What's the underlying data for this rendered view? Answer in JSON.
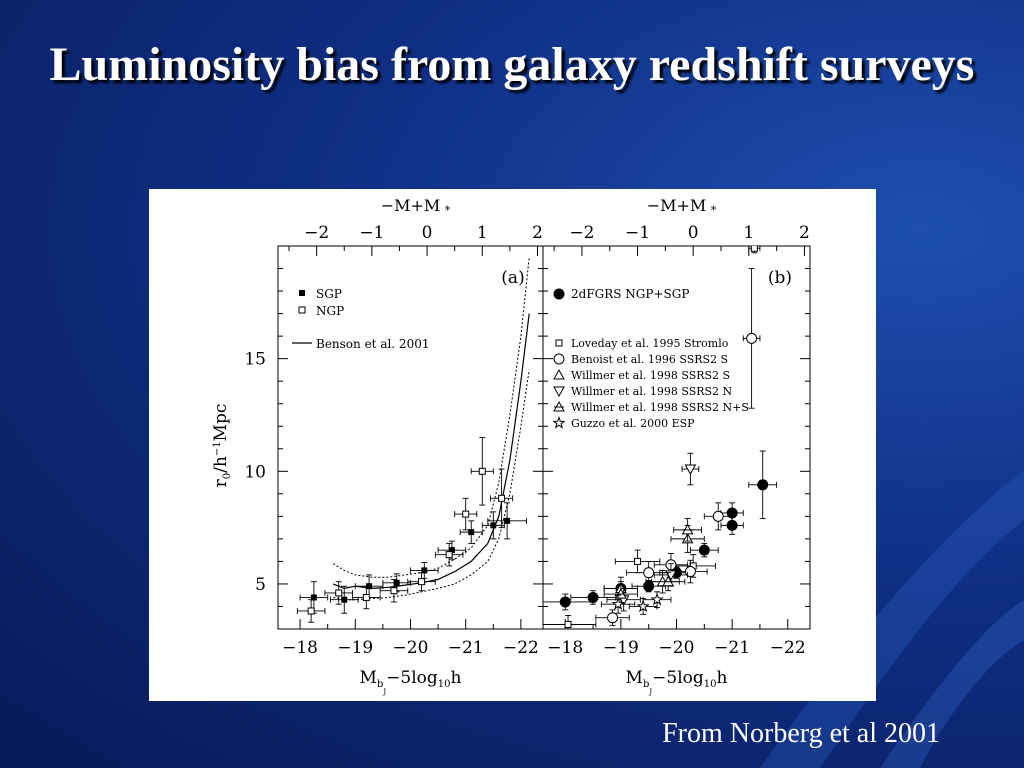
{
  "slide": {
    "title": "Luminosity bias from galaxy redshift surveys",
    "credit": "From Norberg et al 2001",
    "background_color": "#0f2f85",
    "title_color": "#ffffff"
  },
  "chart_data": [
    {
      "type": "scatter",
      "panel_label": "(a)",
      "xlabel": "M",
      "xlabel_sub": "b",
      "xlabel_subsub": "J",
      "xlabel_rest": "−5log",
      "xlabel_sub2": "10",
      "xlabel_end": "h",
      "ylabel": "r",
      "ylabel_sub": "0",
      "ylabel_rest": "/h",
      "ylabel_sup": "−1",
      "ylabel_end": "Mpc",
      "top_axis_label": "−M+M",
      "top_axis_sub": "*",
      "xlim": [
        -17.6,
        -22.4
      ],
      "ylim": [
        3,
        20
      ],
      "x_ticks": [
        "−18",
        "−19",
        "−20",
        "−21",
        "−22"
      ],
      "x_tick_values": [
        -18,
        -19,
        -20,
        -21,
        -22
      ],
      "y_ticks": [
        "5",
        "10",
        "15"
      ],
      "y_tick_values": [
        5,
        10,
        15
      ],
      "top_ticks": [
        "−2",
        "−1",
        "0",
        "1",
        "2"
      ],
      "top_tick_values": [
        -2,
        -1,
        0,
        1,
        2
      ],
      "top_offset": -20.3,
      "legend": [
        {
          "label": "SGP",
          "marker": "filled-square"
        },
        {
          "label": "NGP",
          "marker": "open-square"
        },
        {
          "label": "Benson et al. 2001",
          "marker": "line"
        }
      ],
      "series": [
        {
          "name": "SGP",
          "marker": "filled-square",
          "points": [
            {
              "x": -18.25,
              "y": 4.4,
              "xerr": 0.25,
              "yerr": 0.7
            },
            {
              "x": -18.8,
              "y": 4.3,
              "xerr": 0.25,
              "yerr": 0.6
            },
            {
              "x": -19.25,
              "y": 4.9,
              "xerr": 0.25,
              "yerr": 0.5
            },
            {
              "x": -19.75,
              "y": 5.05,
              "xerr": 0.25,
              "yerr": 0.4
            },
            {
              "x": -20.25,
              "y": 5.6,
              "xerr": 0.25,
              "yerr": 0.35
            },
            {
              "x": -20.75,
              "y": 6.5,
              "xerr": 0.25,
              "yerr": 0.4
            },
            {
              "x": -21.1,
              "y": 7.3,
              "xerr": 0.2,
              "yerr": 0.5
            },
            {
              "x": -21.5,
              "y": 7.6,
              "xerr": 0.2,
              "yerr": 0.6
            },
            {
              "x": -21.75,
              "y": 7.8,
              "xerr": 0.35,
              "yerr": 0.8
            }
          ]
        },
        {
          "name": "NGP",
          "marker": "open-square",
          "points": [
            {
              "x": -18.2,
              "y": 3.8,
              "xerr": 0.25,
              "yerr": 0.5
            },
            {
              "x": -18.7,
              "y": 4.6,
              "xerr": 0.25,
              "yerr": 0.5
            },
            {
              "x": -19.2,
              "y": 4.4,
              "xerr": 0.25,
              "yerr": 0.5
            },
            {
              "x": -19.7,
              "y": 4.7,
              "xerr": 0.25,
              "yerr": 0.5
            },
            {
              "x": -20.2,
              "y": 5.1,
              "xerr": 0.25,
              "yerr": 0.4
            },
            {
              "x": -20.7,
              "y": 6.3,
              "xerr": 0.25,
              "yerr": 0.5
            },
            {
              "x": -21.0,
              "y": 8.1,
              "xerr": 0.2,
              "yerr": 0.7
            },
            {
              "x": -21.3,
              "y": 10.0,
              "xerr": 0.2,
              "yerr": 1.5
            },
            {
              "x": -21.65,
              "y": 8.8,
              "xerr": 0.2,
              "yerr": 1.3
            }
          ]
        }
      ],
      "model": {
        "name": "Benson et al. 2001",
        "x": [
          -18.6,
          -18.8,
          -19.0,
          -19.3,
          -19.6,
          -19.9,
          -20.2,
          -20.5,
          -20.8,
          -21.1,
          -21.4,
          -21.6,
          -21.8,
          -22.0,
          -22.15
        ],
        "y": [
          5.0,
          4.8,
          4.9,
          4.8,
          4.85,
          4.95,
          5.05,
          5.2,
          5.55,
          6.0,
          6.8,
          8.0,
          10.5,
          14.0,
          17.0
        ],
        "upper": [
          5.9,
          5.6,
          5.4,
          5.3,
          5.3,
          5.4,
          5.5,
          5.7,
          6.1,
          6.6,
          7.6,
          9.5,
          12.5,
          16.0,
          19.5
        ],
        "lower": [
          4.4,
          4.3,
          4.3,
          4.35,
          4.4,
          4.5,
          4.65,
          4.8,
          5.0,
          5.4,
          6.0,
          7.0,
          9.0,
          12.0,
          14.5
        ]
      }
    },
    {
      "type": "scatter",
      "panel_label": "(b)",
      "xlabel": "M",
      "xlabel_sub": "b",
      "xlabel_subsub": "J",
      "xlabel_rest": "−5log",
      "xlabel_sub2": "10",
      "xlabel_end": "h",
      "top_axis_label": "−M+M",
      "top_axis_sub": "*",
      "xlim": [
        -17.6,
        -22.4
      ],
      "ylim": [
        3,
        20
      ],
      "x_ticks": [
        "−18",
        "−19",
        "−20",
        "−21",
        "−22"
      ],
      "x_tick_values": [
        -18,
        -19,
        -20,
        -21,
        -22
      ],
      "top_ticks": [
        "−2",
        "−1",
        "0",
        "1",
        "2"
      ],
      "top_tick_values": [
        -2,
        -1,
        0,
        1,
        2
      ],
      "top_offset": -20.3,
      "legend": [
        {
          "label": "2dFGRS NGP+SGP",
          "marker": "big-filled-circle"
        },
        {
          "label": "Loveday et al. 1995 Stromlo",
          "marker": "open-square"
        },
        {
          "label": "Benoist et al. 1996 SSRS2 S",
          "marker": "open-circle"
        },
        {
          "label": "Willmer et al. 1998 SSRS2 S",
          "marker": "triangle-up"
        },
        {
          "label": "Willmer et al. 1998 SSRS2 N",
          "marker": "triangle-down"
        },
        {
          "label": "Willmer et al. 1998 SSRS2 N+S",
          "marker": "triangle-crossed"
        },
        {
          "label": "Guzzo et al. 2000 ESP",
          "marker": "star"
        }
      ],
      "series": [
        {
          "name": "2dFGRS NGP+SGP",
          "marker": "big-filled-circle",
          "points": [
            {
              "x": -18.0,
              "y": 4.2,
              "xerr": 0.5,
              "yerr": 0.35
            },
            {
              "x": -18.5,
              "y": 4.4,
              "xerr": 0.4,
              "yerr": 0.3
            },
            {
              "x": -19.0,
              "y": 4.8,
              "xerr": 0.3,
              "yerr": 0.3
            },
            {
              "x": -19.5,
              "y": 4.9,
              "xerr": 0.3,
              "yerr": 0.25
            },
            {
              "x": -20.0,
              "y": 5.5,
              "xerr": 0.3,
              "yerr": 0.25
            },
            {
              "x": -20.5,
              "y": 6.5,
              "xerr": 0.25,
              "yerr": 0.3
            },
            {
              "x": -21.0,
              "y": 7.6,
              "xerr": 0.2,
              "yerr": 0.4
            },
            {
              "x": -21.0,
              "y": 8.15,
              "xerr": 0.2,
              "yerr": 0.45
            },
            {
              "x": -21.55,
              "y": 9.4,
              "xerr": 0.25,
              "yerr": 1.5
            }
          ]
        },
        {
          "name": "Loveday et al. 1995 Stromlo",
          "marker": "open-square",
          "points": [
            {
              "x": -18.05,
              "y": 3.2,
              "xerr": 0.5,
              "yerr": 0.4
            },
            {
              "x": -19.3,
              "y": 6.0,
              "xerr": 0.4,
              "yerr": 0.5
            },
            {
              "x": -20.3,
              "y": 5.8,
              "xerr": 0.4,
              "yerr": 0.5
            },
            {
              "x": -21.4,
              "y": 19.9,
              "xerr": 0.1,
              "yerr": 0.2
            }
          ]
        },
        {
          "name": "Benoist et al. 1996 SSRS2 S",
          "marker": "open-circle",
          "points": [
            {
              "x": -18.85,
              "y": 3.5,
              "xerr": 0.3,
              "yerr": 0.35
            },
            {
              "x": -19.5,
              "y": 5.5,
              "xerr": 0.4,
              "yerr": 0.5
            },
            {
              "x": -19.9,
              "y": 5.85,
              "xerr": 0.3,
              "yerr": 0.5
            },
            {
              "x": -20.25,
              "y": 5.55,
              "xerr": 0.3,
              "yerr": 0.5
            },
            {
              "x": -20.75,
              "y": 8.0,
              "xerr": 0.25,
              "yerr": 0.6
            },
            {
              "x": -21.35,
              "y": 15.9,
              "xerr": 0.15,
              "yerr": 3.1
            }
          ]
        },
        {
          "name": "Willmer et al. 1998 SSRS2 S",
          "marker": "triangle-up",
          "points": [
            {
              "x": -19.0,
              "y": 4.8,
              "xerr": 0.3,
              "yerr": 0.5
            },
            {
              "x": -19.75,
              "y": 5.1,
              "xerr": 0.3,
              "yerr": 0.5
            },
            {
              "x": -20.2,
              "y": 7.0,
              "xerr": 0.3,
              "yerr": 0.6
            }
          ]
        },
        {
          "name": "Willmer et al. 1998 SSRS2 N",
          "marker": "triangle-down",
          "points": [
            {
              "x": -19.05,
              "y": 4.3,
              "xerr": 0.3,
              "yerr": 0.5
            },
            {
              "x": -19.9,
              "y": 5.4,
              "xerr": 0.3,
              "yerr": 0.5
            },
            {
              "x": -20.25,
              "y": 10.1,
              "xerr": 0.15,
              "yerr": 0.7
            }
          ]
        },
        {
          "name": "Willmer et al. 1998 SSRS2 N+S",
          "marker": "triangle-crossed",
          "points": [
            {
              "x": -19.0,
              "y": 4.55,
              "xerr": 0.3,
              "yerr": 0.4
            },
            {
              "x": -19.85,
              "y": 5.1,
              "xerr": 0.3,
              "yerr": 0.4
            },
            {
              "x": -20.2,
              "y": 7.4,
              "xerr": 0.25,
              "yerr": 0.5
            }
          ]
        },
        {
          "name": "Guzzo et al. 2000 ESP",
          "marker": "star",
          "points": [
            {
              "x": -18.95,
              "y": 4.1,
              "xerr": 0.3,
              "yerr": 0.4
            },
            {
              "x": -19.4,
              "y": 4.0,
              "xerr": 0.25,
              "yerr": 0.35
            },
            {
              "x": -19.65,
              "y": 4.3,
              "xerr": 0.25,
              "yerr": 0.35
            }
          ]
        }
      ]
    }
  ]
}
